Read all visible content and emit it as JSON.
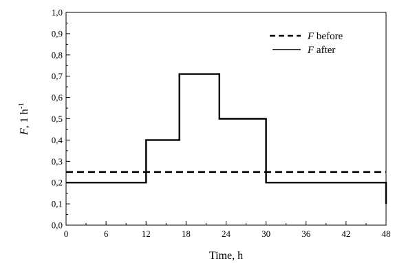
{
  "chart_data": {
    "type": "line",
    "line_shape": "step",
    "xlabel": "Time, h",
    "ylabel": {
      "symbol": "F",
      "unit": ", 1 h",
      "exponent": "-1"
    },
    "xlim": [
      0,
      48
    ],
    "ylim": [
      0,
      1
    ],
    "xticks": [
      0,
      6,
      12,
      18,
      24,
      30,
      36,
      42,
      48
    ],
    "yticks": [
      0,
      0.1,
      0.2,
      0.3,
      0.4,
      0.5,
      0.6,
      0.7,
      0.8,
      0.9,
      1.0
    ],
    "ytick_labels": [
      "0,0",
      "0,1",
      "0,2",
      "0,3",
      "0,4",
      "0,5",
      "0,6",
      "0,7",
      "0,8",
      "0,9",
      "1,0"
    ],
    "xtick_labels": [
      "0",
      "6",
      "12",
      "18",
      "24",
      "30",
      "36",
      "42",
      "48"
    ],
    "grid": false,
    "legend_position": "top-right",
    "series": [
      {
        "name_symbol": "F",
        "name_text": " before",
        "style": "dashed",
        "color": "#000000",
        "x": [
          0,
          48
        ],
        "y": [
          0.25,
          0.25
        ]
      },
      {
        "name_symbol": "F",
        "name_text": " after",
        "style": "solid",
        "color": "#000000",
        "x": [
          0,
          12,
          12,
          17,
          17,
          23,
          23,
          30,
          30,
          48,
          48
        ],
        "y": [
          0.2,
          0.2,
          0.4,
          0.4,
          0.71,
          0.71,
          0.5,
          0.5,
          0.2,
          0.2,
          0.1
        ]
      }
    ]
  }
}
